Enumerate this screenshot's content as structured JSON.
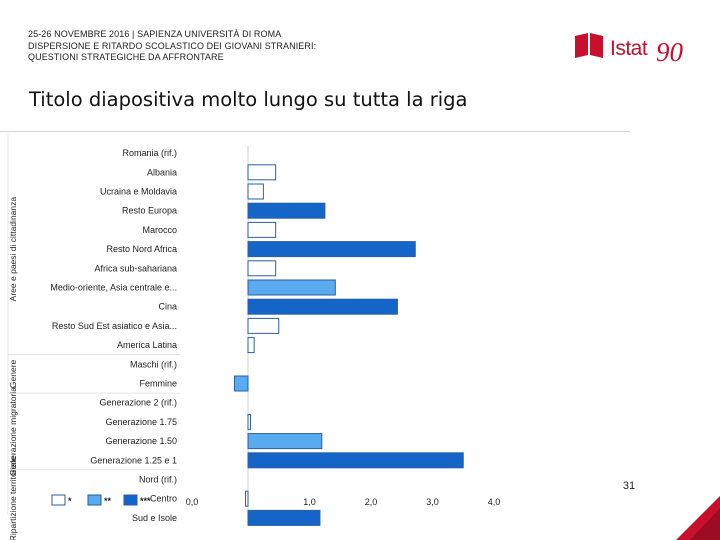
{
  "header": {
    "line1": "25-26 NOVEMBRE 2016 | SAPIENZA UNIVERSITÀ DI ROMA",
    "line2": "DISPERSIONE E RITARDO SCOLASTICO DEI GIOVANI STRANIERI:",
    "line3": "QUESTIONI STRATEGICHE DA AFFRONTARE"
  },
  "logo": {
    "text": "Istat",
    "anniversary": "90"
  },
  "slide_title": "Titolo diapositiva molto lungo su tutta la riga",
  "page_number": "31",
  "colors": {
    "accent": "#c8102e",
    "sig1": "#ffffff",
    "sig2": "#5aaaf0",
    "sig3": "#1565c8",
    "bar_border": "#2a5fa8"
  },
  "chart_data": {
    "type": "bar",
    "orientation": "horizontal",
    "xlim": [
      0,
      4.6
    ],
    "xticks": [
      0,
      1,
      2,
      3,
      4
    ],
    "xtick_labels": [
      "0,0",
      "1,0",
      "2,0",
      "3,0",
      "4,0"
    ],
    "legend": {
      "position": "bottom-left",
      "labels": [
        "*",
        "**",
        "***"
      ]
    },
    "groups": [
      {
        "label": "Aree e paesi di cittadinanza",
        "start": 0,
        "end": 10
      },
      {
        "label": "Genere",
        "start": 11,
        "end": 12
      },
      {
        "label": "Generazione migratoria",
        "start": 13,
        "end": 16
      },
      {
        "label": "Ripartizione territoriale",
        "start": 17,
        "end": 19
      }
    ],
    "bars": [
      {
        "label": "Romania (rif.)",
        "value": 0,
        "sig": 0
      },
      {
        "label": "Albania",
        "value": 0.45,
        "sig": 1
      },
      {
        "label": "Ucraina e Moldavia",
        "value": 0.25,
        "sig": 1
      },
      {
        "label": "Resto Europa",
        "value": 1.25,
        "sig": 3
      },
      {
        "label": "Marocco",
        "value": 0.45,
        "sig": 1
      },
      {
        "label": "Resto Nord Africa",
        "value": 2.72,
        "sig": 3
      },
      {
        "label": "Africa sub-sahariana",
        "value": 0.45,
        "sig": 1
      },
      {
        "label": "Medio-oriente, Asia centrale e...",
        "value": 1.42,
        "sig": 2
      },
      {
        "label": "Cina",
        "value": 2.43,
        "sig": 3
      },
      {
        "label": "Resto Sud Est asiatico e Asia...",
        "value": 0.5,
        "sig": 1
      },
      {
        "label": "America Latina",
        "value": 0.1,
        "sig": 1
      },
      {
        "label": "Maschi (rif.)",
        "value": 0,
        "sig": 0
      },
      {
        "label": "Femmine",
        "value": -0.22,
        "sig": 2
      },
      {
        "label": "Generazione 2 (rif.)",
        "value": 0,
        "sig": 0
      },
      {
        "label": "Generazione 1.75",
        "value": 0.04,
        "sig": 1
      },
      {
        "label": "Generazione 1.50",
        "value": 1.2,
        "sig": 2
      },
      {
        "label": "Generazione 1.25 e 1",
        "value": 3.5,
        "sig": 3
      },
      {
        "label": "Nord (rif.)",
        "value": 0,
        "sig": 0
      },
      {
        "label": "Centro",
        "value": -0.04,
        "sig": 1
      },
      {
        "label": "Sud e Isole",
        "value": 1.17,
        "sig": 3
      }
    ]
  }
}
